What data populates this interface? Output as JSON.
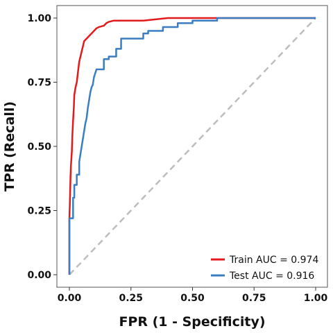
{
  "chart_data": {
    "type": "line",
    "xlabel": "FPR (1 - Specificity)",
    "ylabel": "TPR (Recall)",
    "xlim": [
      0,
      1
    ],
    "ylim": [
      0,
      1
    ],
    "x_ticks": [
      "0.00",
      "0.25",
      "0.50",
      "0.75",
      "1.00"
    ],
    "y_ticks": [
      "0.00",
      "0.25",
      "0.50",
      "0.75",
      "1.00"
    ],
    "grid": false,
    "legend_position": "bottom-right",
    "diagonal_reference": true,
    "series": [
      {
        "name": "Train AUC = 0.974",
        "color": "#e31a1c",
        "points": [
          [
            0.0,
            0.0
          ],
          [
            0.0,
            0.22
          ],
          [
            0.002,
            0.28
          ],
          [
            0.004,
            0.36
          ],
          [
            0.006,
            0.42
          ],
          [
            0.01,
            0.48
          ],
          [
            0.012,
            0.54
          ],
          [
            0.015,
            0.6
          ],
          [
            0.018,
            0.65
          ],
          [
            0.02,
            0.7
          ],
          [
            0.025,
            0.73
          ],
          [
            0.03,
            0.75
          ],
          [
            0.035,
            0.79
          ],
          [
            0.04,
            0.83
          ],
          [
            0.045,
            0.85
          ],
          [
            0.05,
            0.87
          ],
          [
            0.055,
            0.89
          ],
          [
            0.06,
            0.91
          ],
          [
            0.07,
            0.92
          ],
          [
            0.08,
            0.93
          ],
          [
            0.09,
            0.94
          ],
          [
            0.1,
            0.95
          ],
          [
            0.11,
            0.96
          ],
          [
            0.12,
            0.965
          ],
          [
            0.14,
            0.97
          ],
          [
            0.15,
            0.98
          ],
          [
            0.16,
            0.985
          ],
          [
            0.18,
            0.99
          ],
          [
            0.2,
            0.99
          ],
          [
            0.3,
            0.99
          ],
          [
            0.35,
            0.995
          ],
          [
            0.4,
            1.0
          ],
          [
            0.5,
            1.0
          ],
          [
            0.7,
            1.0
          ],
          [
            1.0,
            1.0
          ]
        ]
      },
      {
        "name": "Test AUC = 0.916",
        "color": "#3a7dc0",
        "points": [
          [
            0.0,
            0.0
          ],
          [
            0.0,
            0.22
          ],
          [
            0.015,
            0.22
          ],
          [
            0.015,
            0.3
          ],
          [
            0.02,
            0.3
          ],
          [
            0.02,
            0.35
          ],
          [
            0.03,
            0.35
          ],
          [
            0.03,
            0.39
          ],
          [
            0.04,
            0.39
          ],
          [
            0.04,
            0.44
          ],
          [
            0.05,
            0.5
          ],
          [
            0.055,
            0.53
          ],
          [
            0.06,
            0.56
          ],
          [
            0.065,
            0.59
          ],
          [
            0.07,
            0.61
          ],
          [
            0.075,
            0.65
          ],
          [
            0.08,
            0.68
          ],
          [
            0.085,
            0.71
          ],
          [
            0.09,
            0.73
          ],
          [
            0.095,
            0.74
          ],
          [
            0.1,
            0.77
          ],
          [
            0.11,
            0.8
          ],
          [
            0.14,
            0.8
          ],
          [
            0.14,
            0.84
          ],
          [
            0.16,
            0.84
          ],
          [
            0.16,
            0.85
          ],
          [
            0.19,
            0.85
          ],
          [
            0.19,
            0.88
          ],
          [
            0.21,
            0.88
          ],
          [
            0.21,
            0.92
          ],
          [
            0.3,
            0.92
          ],
          [
            0.3,
            0.94
          ],
          [
            0.32,
            0.94
          ],
          [
            0.32,
            0.95
          ],
          [
            0.38,
            0.95
          ],
          [
            0.38,
            0.965
          ],
          [
            0.44,
            0.965
          ],
          [
            0.44,
            0.98
          ],
          [
            0.5,
            0.98
          ],
          [
            0.5,
            0.99
          ],
          [
            0.6,
            0.99
          ],
          [
            0.6,
            1.0
          ],
          [
            1.0,
            1.0
          ]
        ]
      }
    ]
  }
}
